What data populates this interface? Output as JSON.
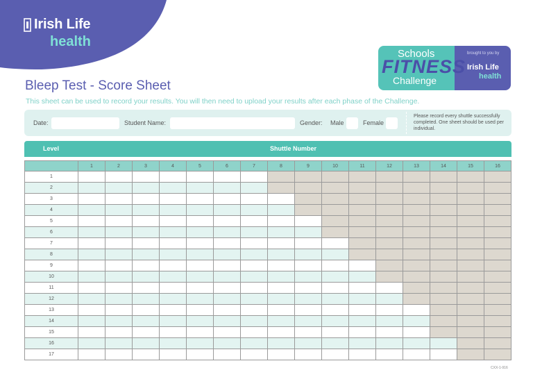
{
  "brand": {
    "name": "Irish Life",
    "sub": "health"
  },
  "badge": {
    "line1": "Schools",
    "line2": "FITNESS",
    "line3": "Challenge",
    "by": "brought to you by",
    "brand": "Irish Life",
    "sub": "health"
  },
  "title": "Bleep Test - Score Sheet",
  "subtitle": "This sheet can be used to record your results. You will then need to upload your results after each phase of the Challenge.",
  "form": {
    "date_label": "Date:",
    "student_label": "Student Name:",
    "gender_label": "Gender:",
    "male_label": "Male",
    "female_label": "Female",
    "note": "Please record every shuttle successfully completed. One sheet should be used per individual."
  },
  "table": {
    "level_header": "Level",
    "shuttle_header": "Shuttle Number",
    "shuttles": [
      "1",
      "2",
      "3",
      "4",
      "5",
      "6",
      "7",
      "8",
      "9",
      "10",
      "11",
      "12",
      "13",
      "14",
      "15",
      "16"
    ],
    "levels": [
      "1",
      "2",
      "3",
      "4",
      "5",
      "6",
      "7",
      "8",
      "9",
      "10",
      "11",
      "12",
      "13",
      "14",
      "15",
      "16",
      "17"
    ],
    "shuttles_per_level": [
      7,
      7,
      8,
      8,
      9,
      9,
      10,
      10,
      11,
      11,
      12,
      12,
      13,
      13,
      13,
      14,
      14
    ]
  },
  "colors": {
    "purple": "#5a5eb0",
    "teal": "#4fc0b2",
    "mint": "#e3f4f1",
    "grey": "#ddd8cf"
  },
  "doc_code": "CXX-1-916"
}
